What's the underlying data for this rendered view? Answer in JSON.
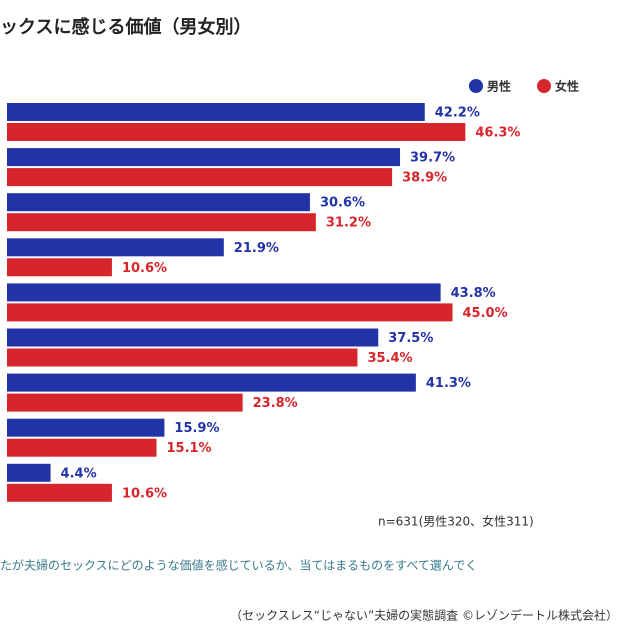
{
  "chart_data": {
    "type": "bar",
    "orientation": "horizontal",
    "title": "ックスに感じる価値（男女別）",
    "categories": [
      null,
      null,
      null,
      null,
      null,
      null,
      null,
      null,
      null
    ],
    "series": [
      {
        "name": "男性",
        "color": "#2233a8",
        "values": [
          42.2,
          39.7,
          30.6,
          21.9,
          43.8,
          37.5,
          41.3,
          15.9,
          4.4
        ],
        "value_labels": [
          "42.2%",
          "39.7%",
          "30.6%",
          "21.9%",
          "43.8%",
          "37.5%",
          "41.3%",
          "15.9%",
          "4.4%"
        ]
      },
      {
        "name": "女性",
        "color": "#d7262b",
        "values": [
          46.3,
          38.9,
          31.2,
          10.6,
          45.0,
          35.4,
          23.8,
          15.1,
          10.6
        ],
        "value_labels": [
          "46.3%",
          "38.9%",
          "31.2%",
          "10.6%",
          "45.0%",
          "35.4%",
          "23.8%",
          "15.1%",
          "10.6%"
        ]
      }
    ],
    "legend": "top-right",
    "annotations": [
      "n=631(男性320、女性311)",
      "たが夫婦のセックスにどのような価値を感じているか、当てはまるものをすべて選んでく",
      "（セックスレス“じゃない”夫婦の実態調査 ©レゾンデートル株式会社）"
    ]
  }
}
